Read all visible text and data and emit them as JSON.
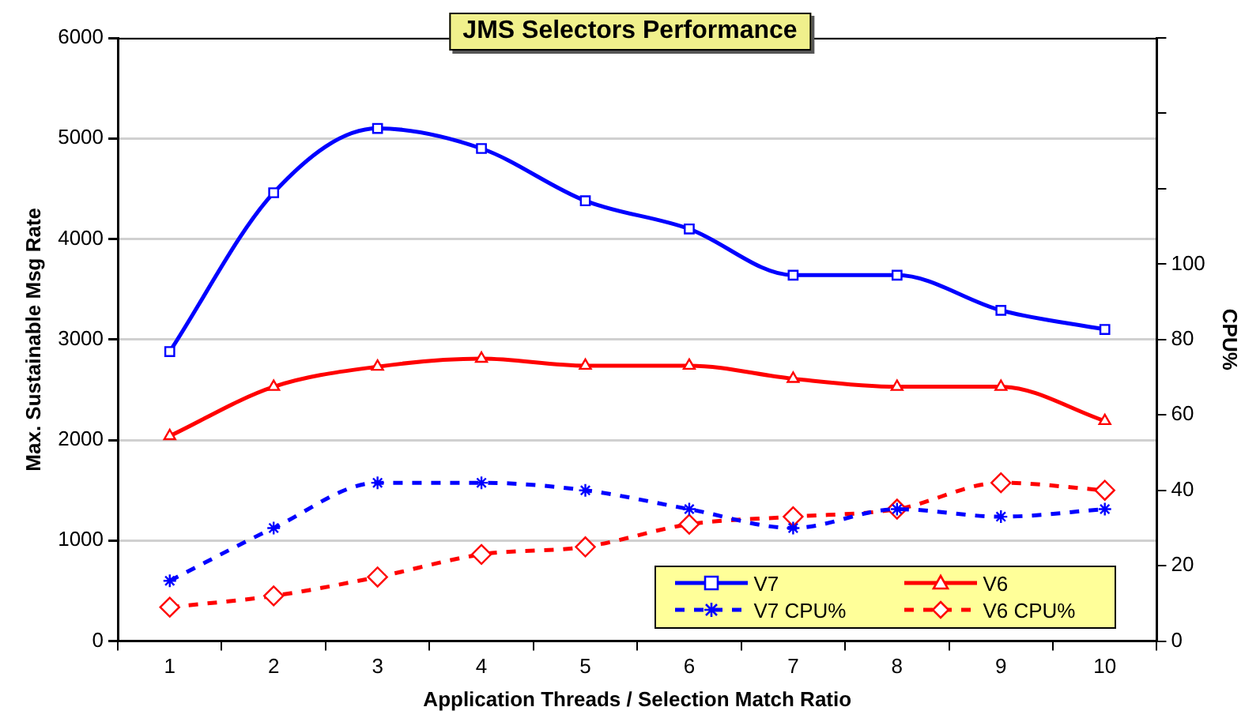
{
  "chart_data": {
    "type": "line",
    "title": "JMS Selectors Performance",
    "xlabel": "Application Threads / Selection Match Ratio",
    "ylabel": "Max. Sustainable Msg Rate",
    "y2label": "CPU%",
    "categories": [
      "1",
      "2",
      "3",
      "4",
      "5",
      "6",
      "7",
      "8",
      "9",
      "10"
    ],
    "series": [
      {
        "name": "V7",
        "color": "#0000ff",
        "marker": "square",
        "line_style": "solid",
        "values": [
          2880,
          4460,
          5100,
          4900,
          4380,
          4100,
          3640,
          3640,
          3290,
          3100
        ]
      },
      {
        "name": "V6",
        "color": "#ff0000",
        "marker": "triangle",
        "line_style": "solid",
        "values": [
          2040,
          2530,
          2730,
          2810,
          2740,
          2740,
          2610,
          2530,
          2530,
          2190
        ]
      },
      {
        "name": "V7 CPU%",
        "color": "#0000ff",
        "marker": "cross",
        "line_style": "dashed",
        "axis": "y2",
        "values": [
          16,
          30,
          42,
          42,
          40,
          35,
          30,
          35,
          33,
          35
        ]
      },
      {
        "name": "V6 CPU%",
        "color": "#ff0000",
        "marker": "diamond",
        "line_style": "dashed",
        "axis": "y2",
        "values": [
          9,
          12,
          17,
          23,
          25,
          31,
          33,
          35,
          42,
          40
        ]
      }
    ],
    "ylim": [
      0,
      6000
    ],
    "yticks": [
      0,
      1000,
      2000,
      3000,
      4000,
      5000,
      6000
    ],
    "y2lim": [
      0,
      160
    ],
    "y2ticks": [
      0,
      20,
      40,
      60,
      80,
      100,
      {
        "value": 120,
        "label": null
      },
      {
        "value": 140,
        "label": null
      },
      {
        "value": 160,
        "label": null
      }
    ],
    "grid": "y",
    "legend": "bottom right"
  }
}
